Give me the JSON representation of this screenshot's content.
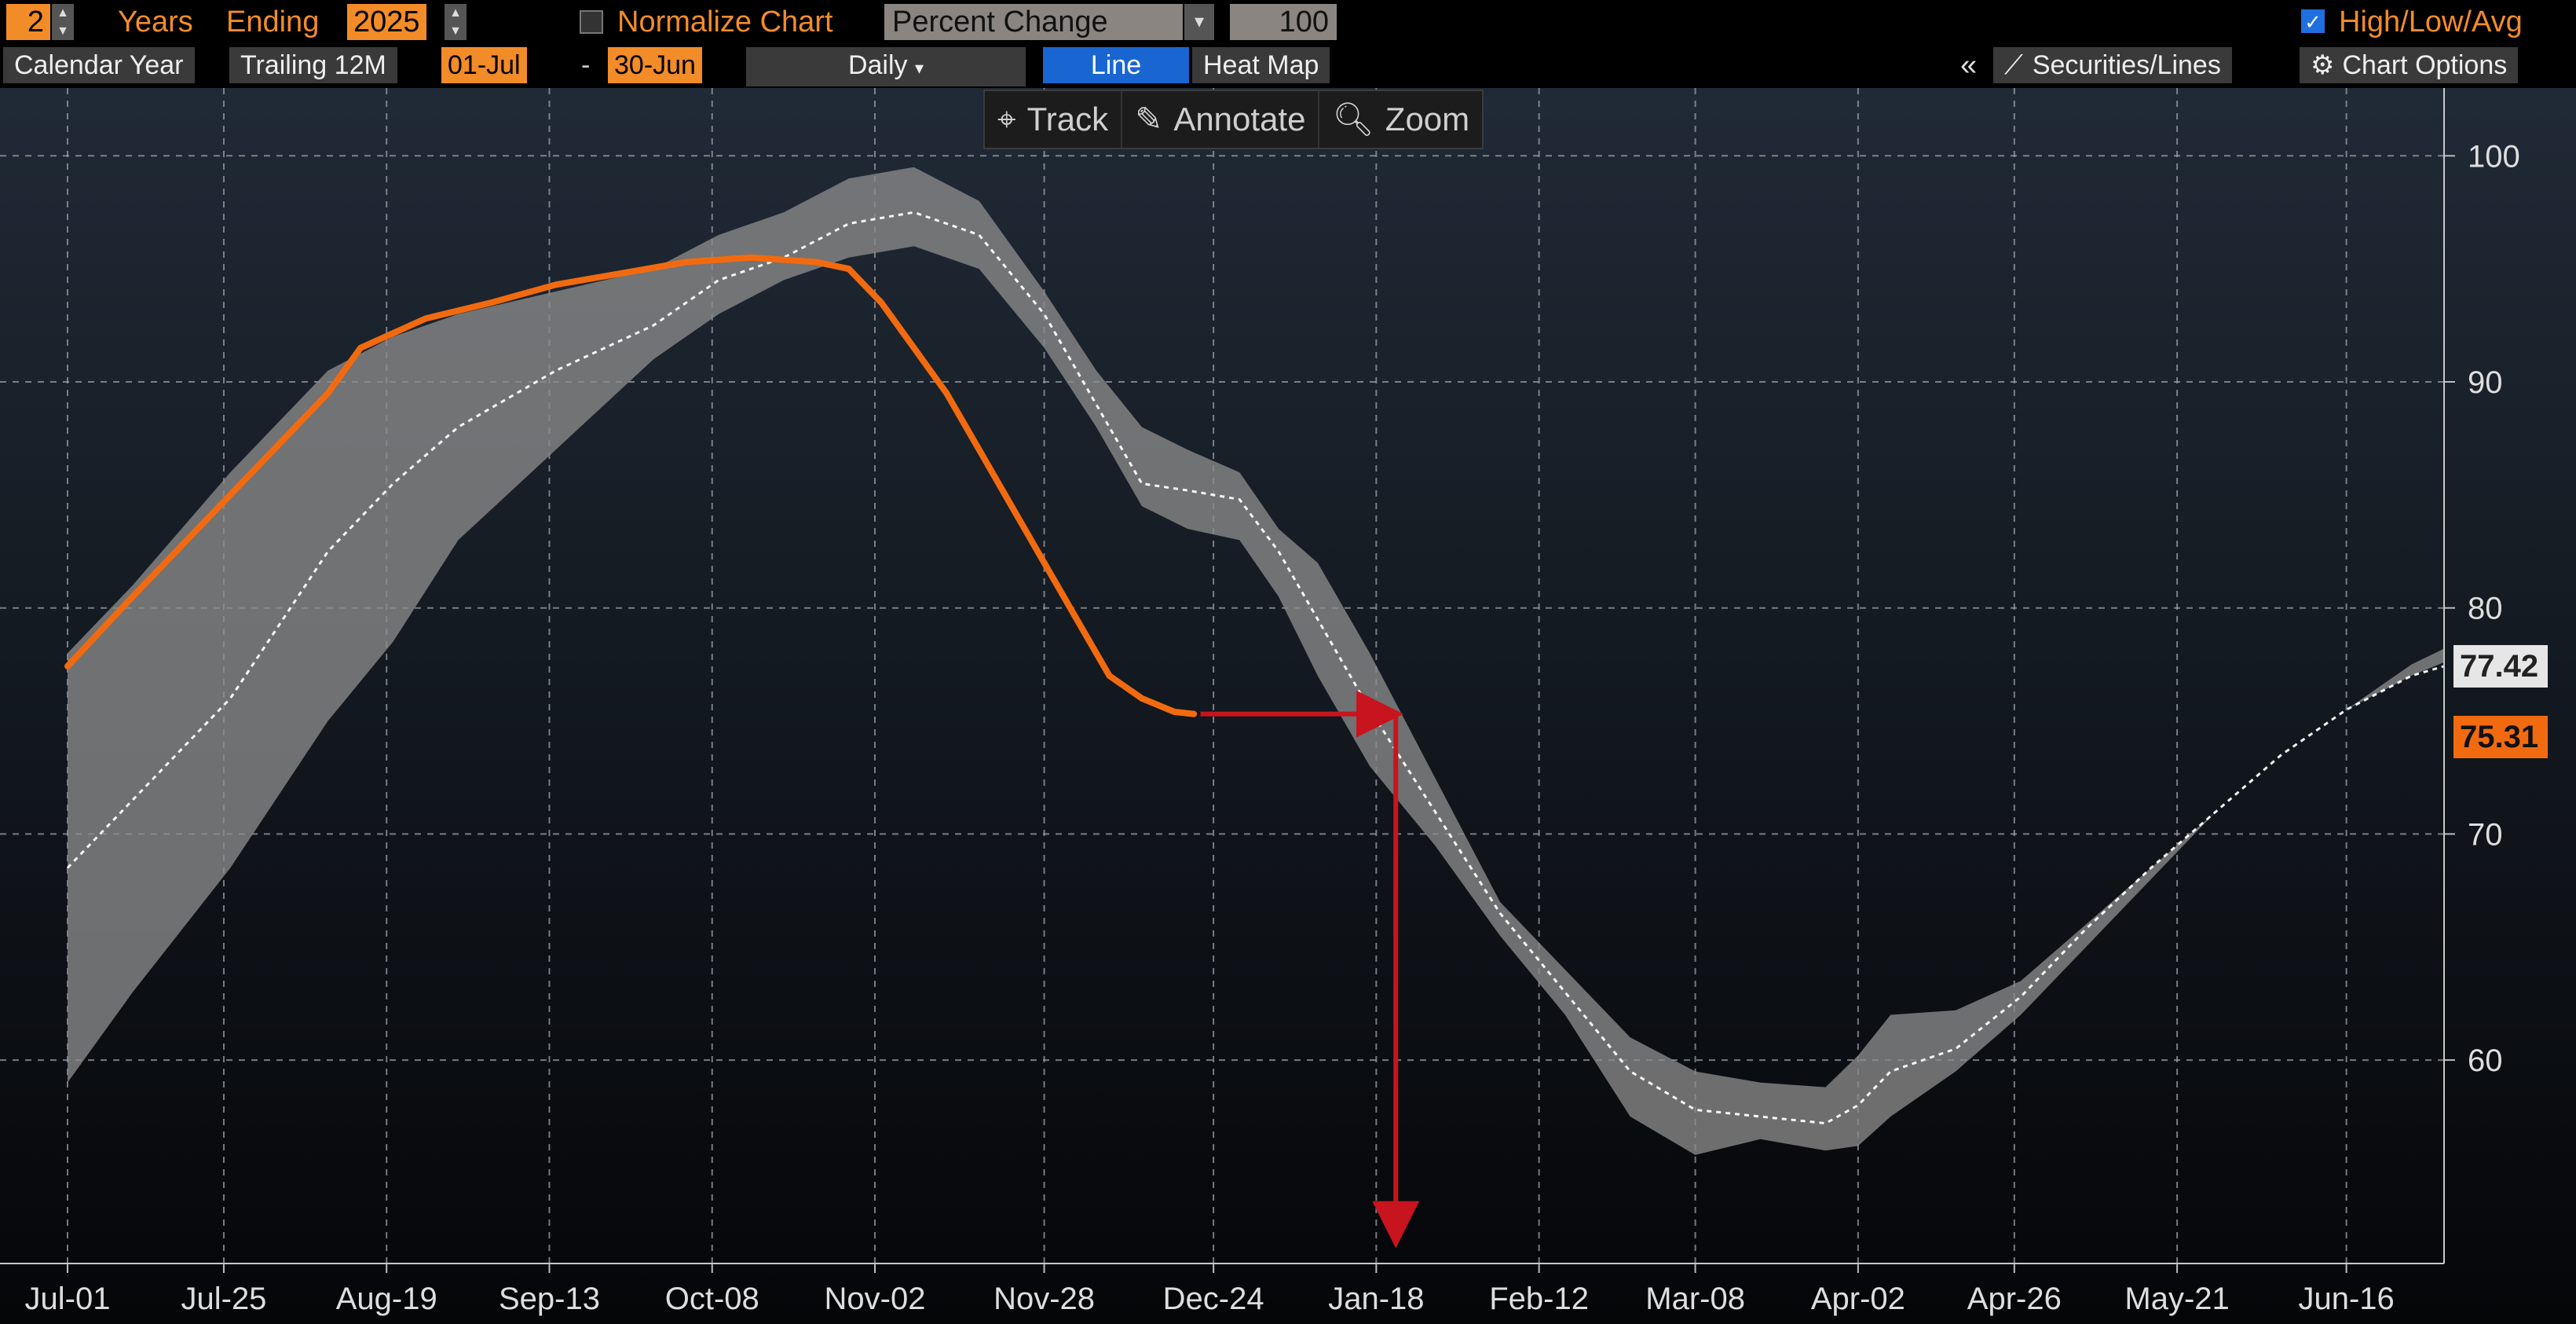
{
  "toolbar": {
    "years_value": "2",
    "years_label": "Years",
    "ending_label": "Ending",
    "ending_value": "2025",
    "normalize_label": "Normalize Chart",
    "mode_value": "Percent Change",
    "base_value": "100",
    "hla_label": "High/Low/Avg"
  },
  "toolbar2": {
    "calendar_year": "Calendar Year",
    "trailing": "Trailing 12M",
    "from_date": "01-Jul",
    "dash": "-",
    "to_date": "30-Jun",
    "frequency": "Daily",
    "line": "Line",
    "heat_map": "Heat Map",
    "collapse": "«",
    "securities": "Securities/Lines",
    "chart_options": "Chart Options"
  },
  "tools": {
    "track": "Track",
    "annotate": "Annotate",
    "zoom": "Zoom"
  },
  "colors": {
    "current": "#f26a10",
    "band": "#8a8a8a",
    "avg": "#ffffff",
    "arrow": "#c8141e",
    "tag_avg_bg": "#e6e6e6",
    "tag_cur_bg": "#f26a10"
  },
  "chart_data": {
    "type": "line",
    "title": "",
    "xlabel": "",
    "ylabel": "",
    "ylim": [
      51,
      103
    ],
    "xlim": [
      0,
      365
    ],
    "y_ticks": [
      60,
      70,
      80,
      90,
      100
    ],
    "y_tick_labels": [
      "60",
      "70",
      "80",
      "90",
      "100"
    ],
    "x_ticks": [
      0,
      24,
      49,
      74,
      99,
      124,
      150,
      176,
      201,
      226,
      250,
      275,
      299,
      324,
      350
    ],
    "x_tick_labels": [
      "Jul-01",
      "Jul-25",
      "Aug-19",
      "Sep-13",
      "Oct-08",
      "Nov-02",
      "Nov-28",
      "Dec-24",
      "Jan-18",
      "Feb-12",
      "Mar-08",
      "Apr-02",
      "Apr-26",
      "May-21",
      "Jun-16"
    ],
    "grid": true,
    "series": [
      {
        "role": "high",
        "x": [
          0,
          10,
          25,
          40,
          50,
          60,
          75,
          90,
          100,
          110,
          120,
          130,
          140,
          150,
          158,
          165,
          172,
          180,
          186,
          192,
          200,
          210,
          220,
          230,
          240,
          250,
          260,
          270,
          275,
          280,
          290,
          300,
          310,
          320,
          330,
          340,
          350,
          360,
          365
        ],
        "y": [
          78,
          81,
          86,
          90.5,
          92,
          93,
          94,
          95,
          96.5,
          97.5,
          99,
          99.5,
          98,
          94,
          90.5,
          88,
          87,
          86,
          83.5,
          82,
          78,
          72.5,
          67,
          64,
          61,
          59.5,
          59,
          58.8,
          60.2,
          62,
          62.2,
          63.5,
          66,
          68.5,
          71,
          73.5,
          75.5,
          77.5,
          78.2
        ]
      },
      {
        "role": "low",
        "x": [
          0,
          10,
          25,
          40,
          50,
          60,
          75,
          90,
          100,
          110,
          120,
          130,
          140,
          150,
          158,
          165,
          172,
          180,
          186,
          192,
          200,
          210,
          220,
          230,
          240,
          250,
          260,
          270,
          275,
          280,
          290,
          300,
          310,
          320,
          330,
          340,
          350,
          360,
          365
        ],
        "y": [
          59,
          63,
          68.5,
          75,
          78.5,
          83,
          87,
          91,
          93,
          94.5,
          95.5,
          96,
          95,
          91.5,
          88,
          84.5,
          83.5,
          83,
          80.5,
          77,
          73,
          69.5,
          65.5,
          62,
          57.5,
          55.8,
          56.5,
          56,
          56.2,
          57.5,
          59.5,
          62,
          65,
          68,
          71,
          73.5,
          75.5,
          77,
          77.6
        ]
      },
      {
        "role": "avg",
        "x": [
          0,
          10,
          25,
          40,
          50,
          60,
          75,
          90,
          100,
          110,
          120,
          130,
          140,
          150,
          158,
          165,
          172,
          180,
          186,
          192,
          200,
          210,
          220,
          230,
          240,
          250,
          260,
          270,
          275,
          280,
          290,
          300,
          310,
          320,
          330,
          340,
          350,
          360,
          365
        ],
        "y": [
          68.5,
          71.5,
          76,
          82.5,
          85.5,
          88,
          90.5,
          92.5,
          94.5,
          95.5,
          97,
          97.5,
          96.5,
          93,
          89,
          85.5,
          85.2,
          84.8,
          82.5,
          79.5,
          75.5,
          71,
          66.5,
          63,
          59.5,
          57.8,
          57.5,
          57.2,
          58,
          59.5,
          60.5,
          62.8,
          65.8,
          68.5,
          71,
          73.5,
          75.5,
          77,
          77.42
        ]
      },
      {
        "role": "current",
        "x": [
          0,
          10,
          20,
          30,
          40,
          45,
          55,
          65,
          75,
          85,
          95,
          105,
          115,
          120,
          125,
          130,
          135,
          140,
          145,
          150,
          155,
          160,
          165,
          170,
          173
        ],
        "y": [
          77.42,
          80.5,
          83.5,
          86.5,
          89.5,
          91.5,
          92.8,
          93.5,
          94.3,
          94.8,
          95.3,
          95.5,
          95.3,
          95.0,
          93.5,
          91.5,
          89.5,
          87,
          84.5,
          82,
          79.5,
          77,
          76,
          75.4,
          75.31
        ]
      }
    ],
    "last_values": {
      "avg": "77.42",
      "current": "75.31"
    },
    "annotations": [
      {
        "type": "arrow",
        "from": [
          174,
          75.31
        ],
        "to": [
          203,
          75.31
        ]
      },
      {
        "type": "arrow",
        "from": [
          204,
          75.31
        ],
        "to": [
          204,
          52.3
        ]
      }
    ]
  }
}
